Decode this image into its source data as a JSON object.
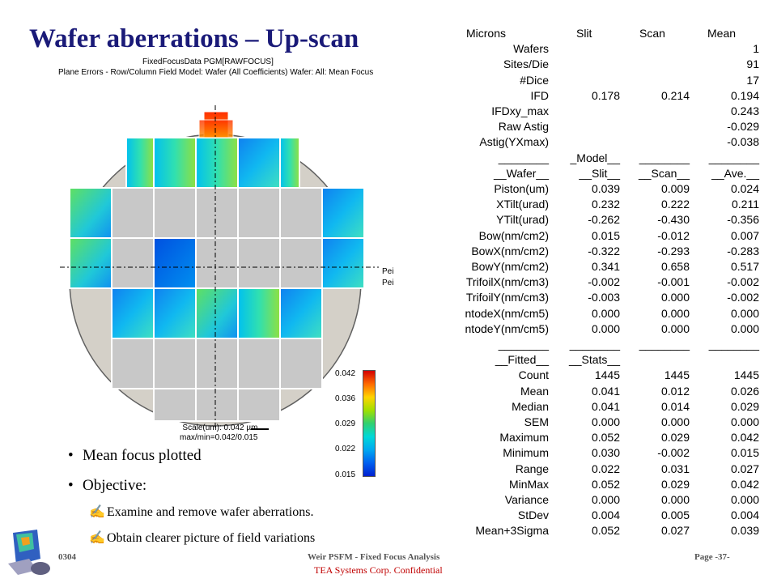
{
  "title": "Wafer aberrations – Up-scan",
  "plot": {
    "header_line1": "FixedFocusData PGM[RAWFOCUS]",
    "header_line2": "Plane Errors - Row/Column Field Model: Wafer (All Coefficients) Wafer: All: Mean Focus",
    "scale_line1": "Scale(um): 0.042 µm",
    "scale_line2": "max/min=0.042/0.015",
    "colorbar_ticks": [
      "0.042",
      "0.036",
      "0.029",
      "0.022",
      "0.015"
    ],
    "side_labels": [
      "Pei",
      "Pei"
    ],
    "colors": {
      "wafer_fill": "#d4d0c8",
      "field_fill": "#c8c8c8",
      "field_border": "#ffffff"
    }
  },
  "bullets": [
    "Mean focus plotted",
    "Objective:"
  ],
  "sub_bullets": [
    "Examine and remove wafer aberrations.",
    "Obtain clearer picture of field variations"
  ],
  "table": {
    "header": [
      "Microns",
      "Slit",
      "Scan",
      "Mean"
    ],
    "summary_rows": [
      [
        "Wafers",
        "",
        "",
        "1"
      ],
      [
        "Sites/Die",
        "",
        "",
        "91"
      ],
      [
        "#Dice",
        "",
        "",
        "17"
      ],
      [
        "IFD",
        "0.178",
        "0.214",
        "0.194"
      ],
      [
        "IFDxy_max",
        "",
        "",
        "0.243"
      ],
      [
        "Raw Astig",
        "",
        "",
        "-0.029"
      ],
      [
        "Astig(YXmax)",
        "",
        "",
        "-0.038"
      ]
    ],
    "model_sep": [
      "________",
      "_Model__",
      "________",
      "________"
    ],
    "model_header": [
      "__Wafer__",
      "__Slit__",
      "__Scan__",
      "__Ave.__"
    ],
    "model_rows": [
      [
        "Piston(um)",
        "0.039",
        "0.009",
        "0.024"
      ],
      [
        "XTilt(urad)",
        "0.232",
        "0.222",
        "0.211"
      ],
      [
        "YTilt(urad)",
        "-0.262",
        "-0.430",
        "-0.356"
      ],
      [
        "Bow(nm/cm2)",
        "0.015",
        "-0.012",
        "0.007"
      ],
      [
        "BowX(nm/cm2)",
        "-0.322",
        "-0.293",
        "-0.283"
      ],
      [
        "BowY(nm/cm2)",
        "0.341",
        "0.658",
        "0.517"
      ],
      [
        "TrifoilX(nm/cm3)",
        "-0.002",
        "-0.001",
        "-0.002"
      ],
      [
        "TrifoilY(nm/cm3)",
        "-0.003",
        "0.000",
        "-0.002"
      ],
      [
        "ntodeX(nm/cm5)",
        "0.000",
        "0.000",
        "0.000"
      ],
      [
        "ntodeY(nm/cm5)",
        "0.000",
        "0.000",
        "0.000"
      ]
    ],
    "stats_sep": [
      "________",
      "________",
      "________",
      "________"
    ],
    "stats_header": [
      "__Fitted__",
      "__Stats__",
      "",
      ""
    ],
    "stats_rows": [
      [
        "Count",
        "1445",
        "1445",
        "1445"
      ],
      [
        "Mean",
        "0.041",
        "0.012",
        "0.026"
      ],
      [
        "Median",
        "0.041",
        "0.014",
        "0.029"
      ],
      [
        "SEM",
        "0.000",
        "0.000",
        "0.000"
      ],
      [
        "Maximum",
        "0.052",
        "0.029",
        "0.042"
      ],
      [
        "Minimum",
        "0.030",
        "-0.002",
        "0.015"
      ],
      [
        "Range",
        "0.022",
        "0.031",
        "0.027"
      ],
      [
        "MinMax",
        "0.052",
        "0.029",
        "0.042"
      ],
      [
        "Variance",
        "0.000",
        "0.000",
        "0.000"
      ],
      [
        "StDev",
        "0.004",
        "0.005",
        "0.004"
      ],
      [
        "Mean+3Sigma",
        "0.052",
        "0.027",
        "0.039"
      ]
    ]
  },
  "footer": {
    "left": "0304",
    "middle": "Weir PSFM - Fixed Focus Analysis",
    "right": "Page -37-",
    "confidential": "TEA Systems Corp. Confidential"
  }
}
